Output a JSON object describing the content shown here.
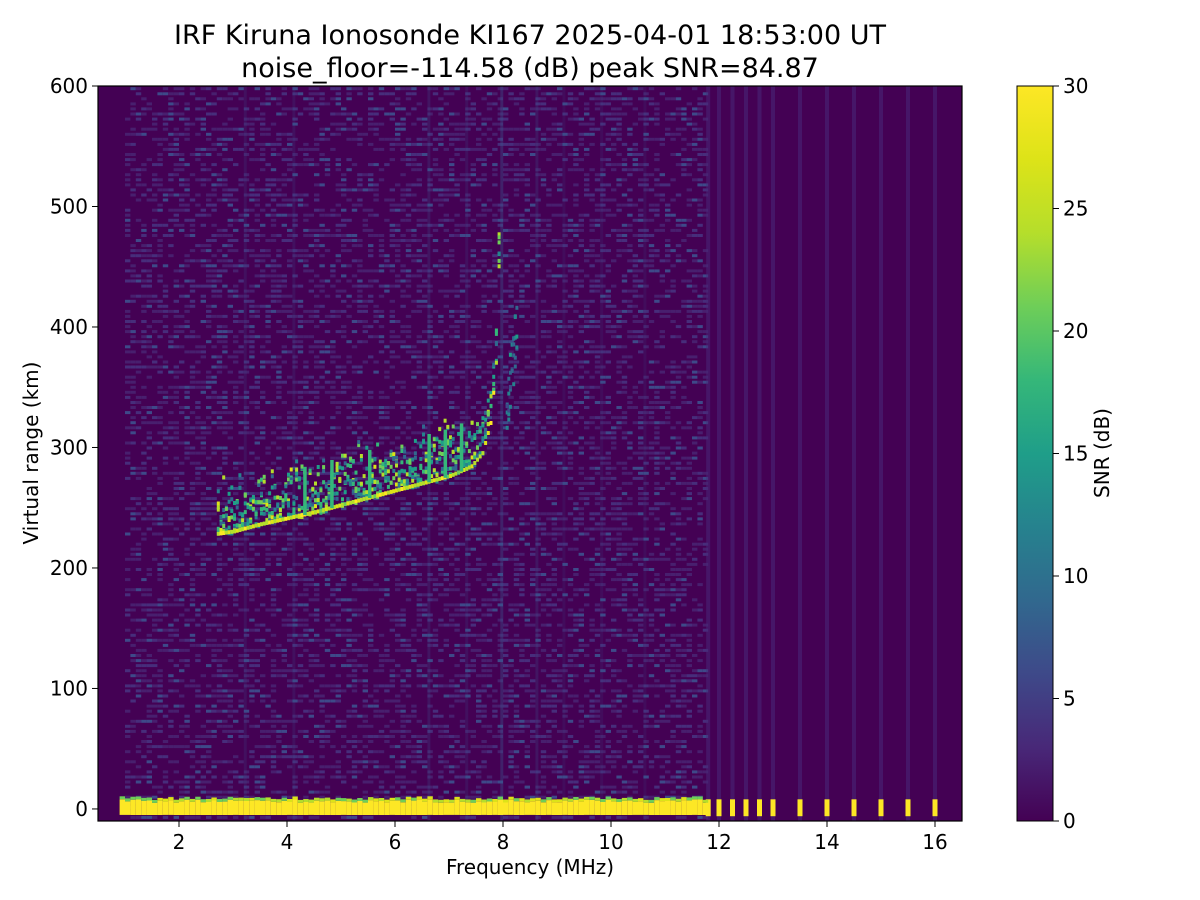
{
  "chart_data": {
    "type": "heatmap",
    "title": "IRF Kiruna Ionosonde KI167 2025-04-01 18:53:00  UT",
    "subtitle": "noise_floor=-114.58 (dB) peak SNR=84.87",
    "xlabel": "Frequency (MHz)",
    "ylabel": "Virtual range (km)",
    "xlim": [
      0.5,
      16.5
    ],
    "ylim": [
      -10,
      600
    ],
    "xticks": [
      2,
      4,
      6,
      8,
      10,
      12,
      14,
      16
    ],
    "yticks": [
      0,
      100,
      200,
      300,
      400,
      500,
      600
    ],
    "colorbar": {
      "label": "SNR (dB)",
      "range": [
        0,
        30
      ],
      "ticks": [
        0,
        5,
        10,
        15,
        20,
        25,
        30
      ],
      "colormap": "viridis"
    },
    "colors": {
      "background": "#440154",
      "low": "#482878",
      "mid": "#21918c",
      "high": "#5ec962",
      "max": "#fde725"
    },
    "features": {
      "transmitter_band": {
        "range_km": [
          -5,
          5
        ],
        "freq_mhz": [
          0.9,
          11.7
        ],
        "snr_db": 30
      },
      "o_trace": [
        {
          "freq": 2.7,
          "range": 228
        },
        {
          "freq": 3.0,
          "range": 230
        },
        {
          "freq": 3.5,
          "range": 236
        },
        {
          "freq": 4.0,
          "range": 241
        },
        {
          "freq": 4.5,
          "range": 246
        },
        {
          "freq": 5.0,
          "range": 252
        },
        {
          "freq": 5.5,
          "range": 258
        },
        {
          "freq": 6.0,
          "range": 264
        },
        {
          "freq": 6.5,
          "range": 270
        },
        {
          "freq": 7.0,
          "range": 276
        },
        {
          "freq": 7.4,
          "range": 284
        },
        {
          "freq": 7.6,
          "range": 295
        },
        {
          "freq": 7.75,
          "range": 320
        },
        {
          "freq": 7.85,
          "range": 370
        },
        {
          "freq": 7.9,
          "range": 450
        }
      ],
      "x_trace": [
        {
          "freq": 8.05,
          "range": 340
        },
        {
          "freq": 8.15,
          "range": 370
        },
        {
          "freq": 8.25,
          "range": 410
        }
      ],
      "discrete_freqs_mhz": [
        11.8,
        12.0,
        12.25,
        12.5,
        12.75,
        13.0,
        13.5,
        14.0,
        14.5,
        15.0,
        15.5,
        16.0
      ]
    }
  }
}
